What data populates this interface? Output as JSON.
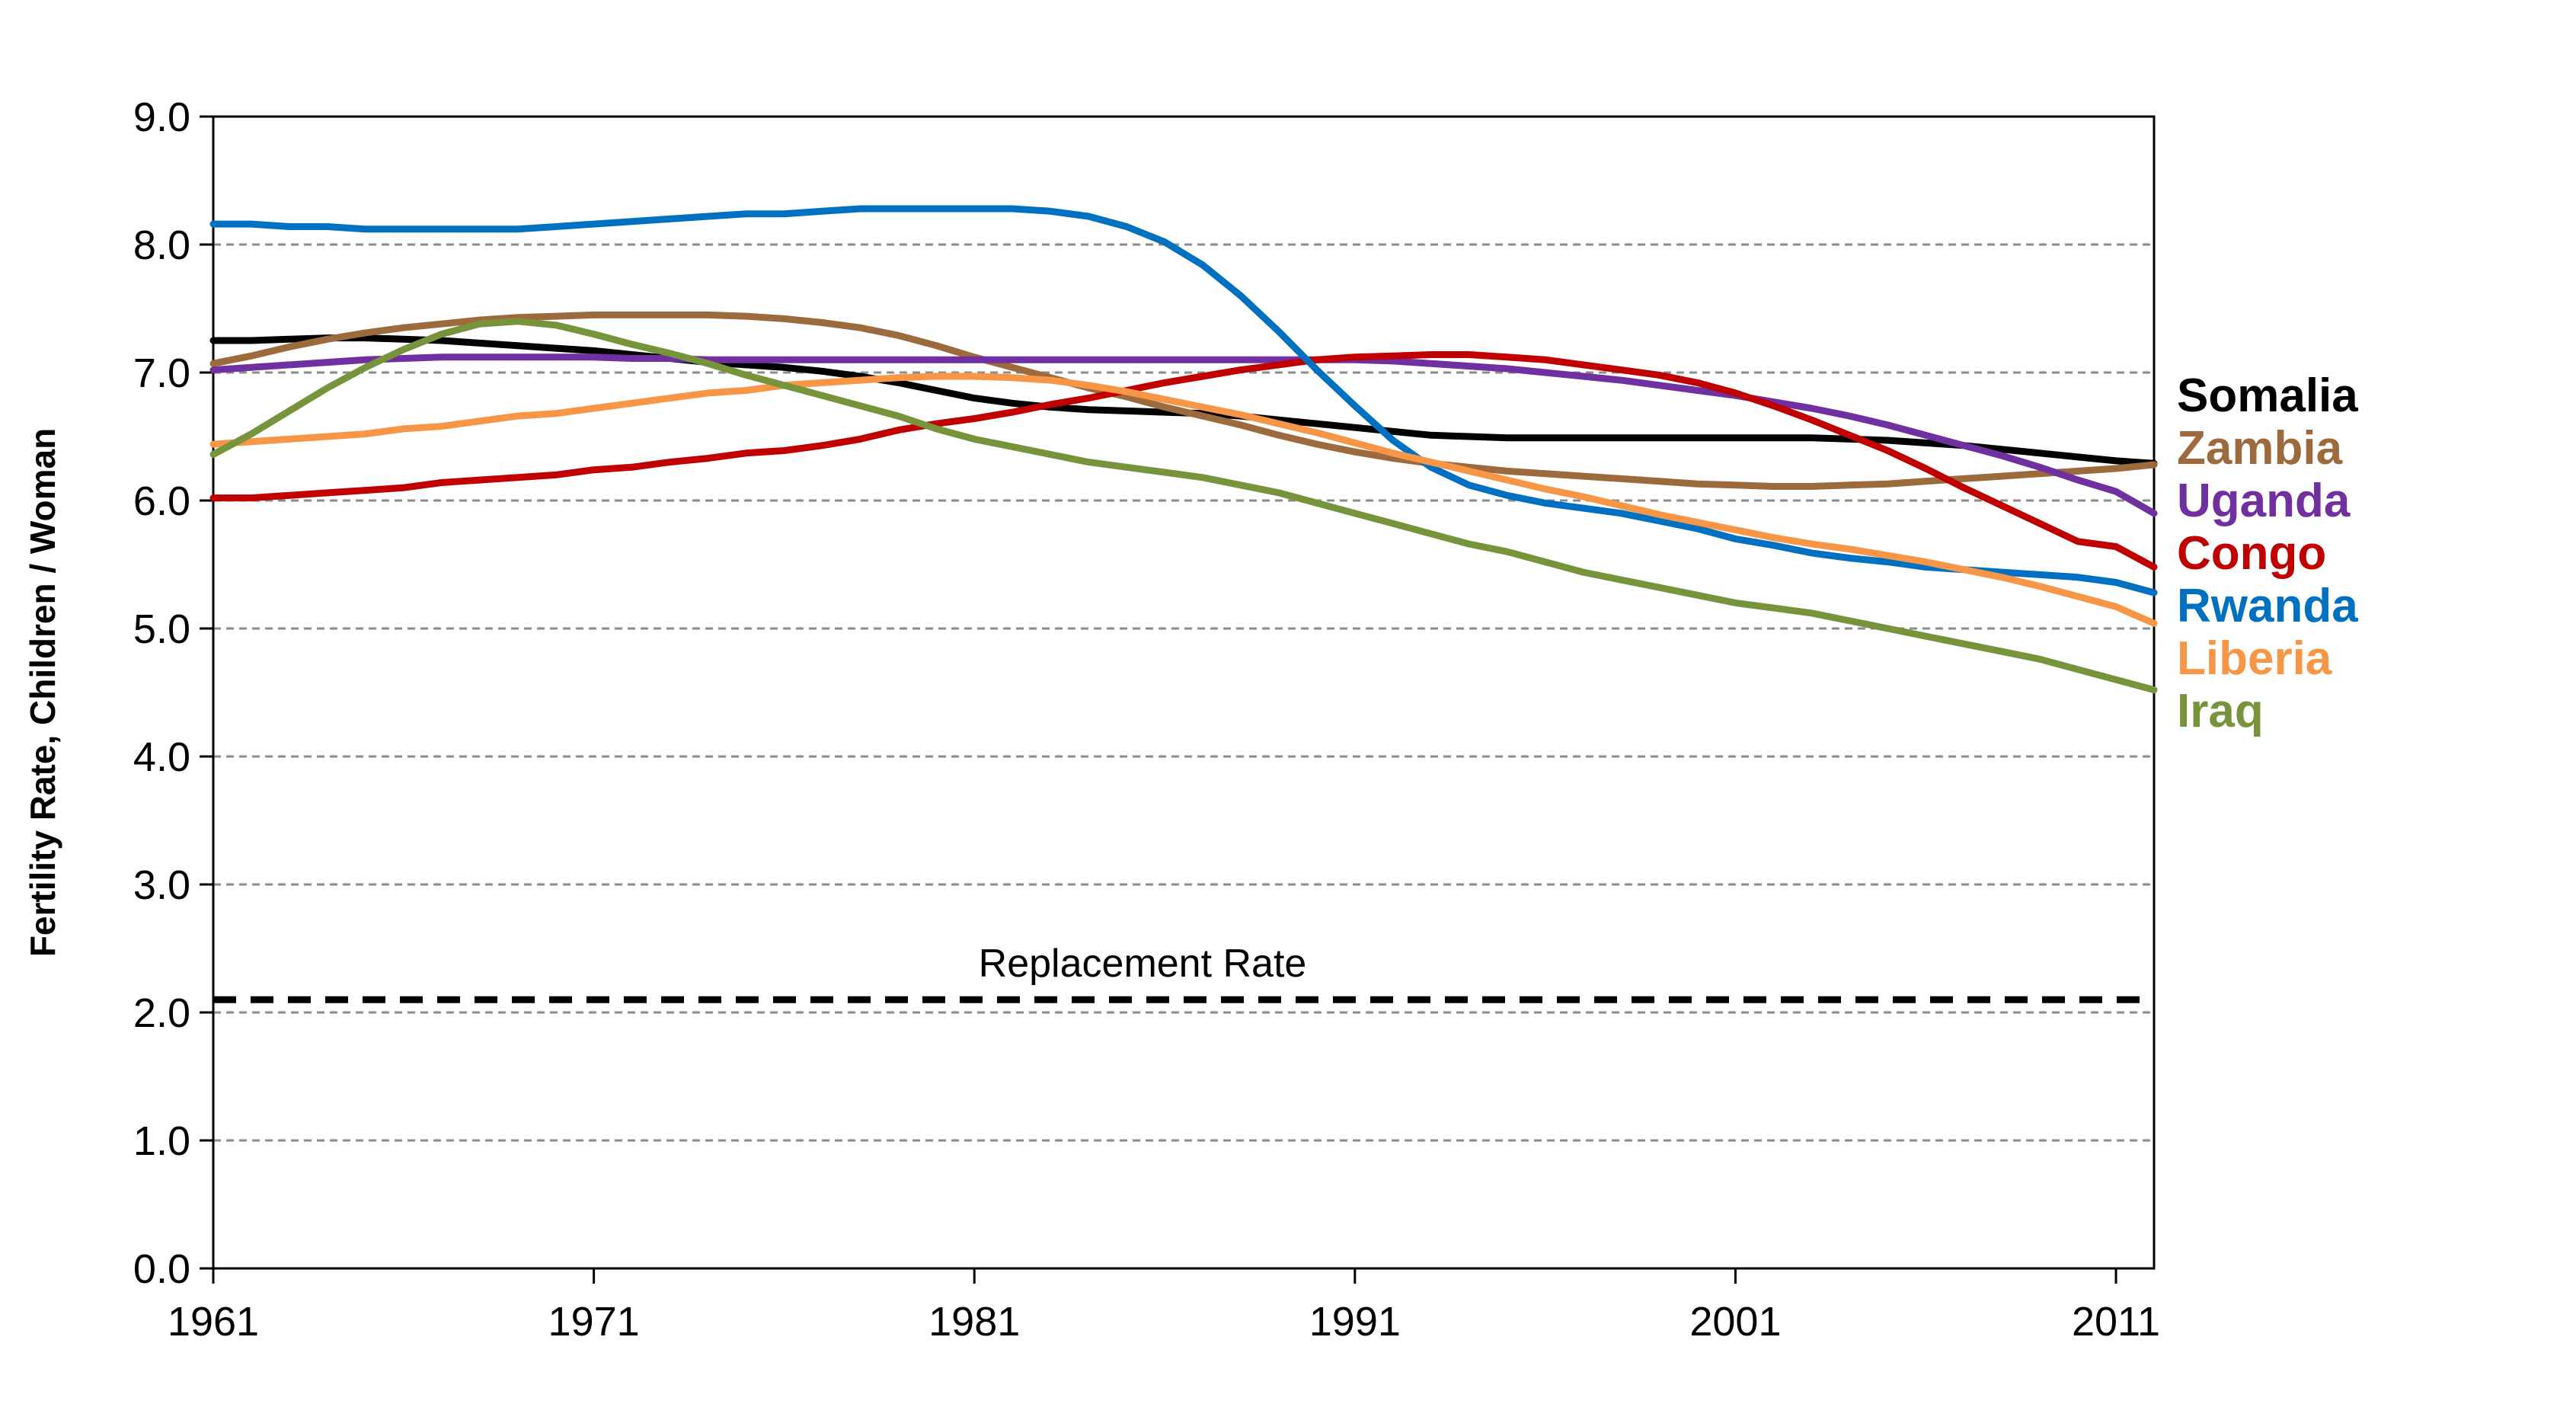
{
  "chart_data": {
    "type": "line",
    "title": "",
    "xlabel": "",
    "ylabel": "Fertility Rate, Children / Woman",
    "xlim": [
      1961,
      2012
    ],
    "ylim": [
      0,
      9
    ],
    "x_ticks": [
      "1961",
      "1971",
      "1981",
      "1991",
      "2001",
      "2011"
    ],
    "y_ticks": [
      "0.0",
      "1.0",
      "2.0",
      "3.0",
      "4.0",
      "5.0",
      "6.0",
      "7.0",
      "8.0",
      "9.0"
    ],
    "grid": "horizontal dashed",
    "legend_placement": "right (labels stacked beside line ends)",
    "replacement": {
      "label": "Replacement Rate",
      "value": 2.1
    },
    "series": [
      {
        "name": "Somalia",
        "color": "#000000",
        "x": [
          1961,
          1962,
          1963,
          1964,
          1965,
          1966,
          1967,
          1968,
          1969,
          1970,
          1971,
          1972,
          1973,
          1974,
          1975,
          1976,
          1977,
          1978,
          1979,
          1980,
          1981,
          1982,
          1983,
          1984,
          1985,
          1986,
          1987,
          1988,
          1989,
          1990,
          1991,
          1992,
          1993,
          1994,
          1995,
          1996,
          1997,
          1998,
          1999,
          2000,
          2001,
          2002,
          2003,
          2004,
          2005,
          2006,
          2007,
          2008,
          2009,
          2010,
          2011,
          2012
        ],
        "values": [
          7.25,
          7.25,
          7.26,
          7.27,
          7.27,
          7.26,
          7.25,
          7.23,
          7.21,
          7.19,
          7.17,
          7.14,
          7.11,
          7.08,
          7.06,
          7.04,
          7.01,
          6.97,
          6.92,
          6.86,
          6.8,
          6.76,
          6.73,
          6.71,
          6.7,
          6.69,
          6.68,
          6.66,
          6.63,
          6.6,
          6.57,
          6.54,
          6.51,
          6.5,
          6.49,
          6.49,
          6.49,
          6.49,
          6.49,
          6.49,
          6.49,
          6.49,
          6.49,
          6.48,
          6.47,
          6.45,
          6.43,
          6.4,
          6.37,
          6.34,
          6.31,
          6.29
        ]
      },
      {
        "name": "Zambia",
        "color": "#9c6a3c",
        "x": [
          1961,
          1962,
          1963,
          1964,
          1965,
          1966,
          1967,
          1968,
          1969,
          1970,
          1971,
          1972,
          1973,
          1974,
          1975,
          1976,
          1977,
          1978,
          1979,
          1980,
          1981,
          1982,
          1983,
          1984,
          1985,
          1986,
          1987,
          1988,
          1989,
          1990,
          1991,
          1992,
          1993,
          1994,
          1995,
          1996,
          1997,
          1998,
          1999,
          2000,
          2001,
          2002,
          2003,
          2004,
          2005,
          2006,
          2007,
          2008,
          2009,
          2010,
          2011,
          2012
        ],
        "values": [
          7.07,
          7.13,
          7.2,
          7.26,
          7.31,
          7.35,
          7.38,
          7.41,
          7.43,
          7.44,
          7.45,
          7.45,
          7.45,
          7.45,
          7.44,
          7.42,
          7.39,
          7.35,
          7.29,
          7.21,
          7.12,
          7.04,
          6.96,
          6.88,
          6.81,
          6.73,
          6.66,
          6.59,
          6.51,
          6.44,
          6.38,
          6.33,
          6.29,
          6.26,
          6.23,
          6.21,
          6.19,
          6.17,
          6.15,
          6.13,
          6.12,
          6.11,
          6.11,
          6.12,
          6.13,
          6.15,
          6.17,
          6.19,
          6.21,
          6.23,
          6.25,
          6.28
        ]
      },
      {
        "name": "Uganda",
        "color": "#7030a0",
        "x": [
          1961,
          1962,
          1963,
          1964,
          1965,
          1966,
          1967,
          1968,
          1969,
          1970,
          1971,
          1972,
          1973,
          1974,
          1975,
          1976,
          1977,
          1978,
          1979,
          1980,
          1981,
          1982,
          1983,
          1984,
          1985,
          1986,
          1987,
          1988,
          1989,
          1990,
          1991,
          1992,
          1993,
          1994,
          1995,
          1996,
          1997,
          1998,
          1999,
          2000,
          2001,
          2002,
          2003,
          2004,
          2005,
          2006,
          2007,
          2008,
          2009,
          2010,
          2011,
          2012
        ],
        "values": [
          7.02,
          7.04,
          7.06,
          7.08,
          7.1,
          7.11,
          7.12,
          7.12,
          7.12,
          7.12,
          7.12,
          7.11,
          7.11,
          7.1,
          7.1,
          7.1,
          7.1,
          7.1,
          7.1,
          7.1,
          7.1,
          7.1,
          7.1,
          7.1,
          7.1,
          7.1,
          7.1,
          7.1,
          7.1,
          7.1,
          7.1,
          7.09,
          7.07,
          7.05,
          7.03,
          7.0,
          6.97,
          6.94,
          6.9,
          6.86,
          6.82,
          6.77,
          6.72,
          6.66,
          6.59,
          6.51,
          6.43,
          6.35,
          6.26,
          6.16,
          6.07,
          5.9
        ]
      },
      {
        "name": "Congo",
        "color": "#c00000",
        "x": [
          1961,
          1962,
          1963,
          1964,
          1965,
          1966,
          1967,
          1968,
          1969,
          1970,
          1971,
          1972,
          1973,
          1974,
          1975,
          1976,
          1977,
          1978,
          1979,
          1980,
          1981,
          1982,
          1983,
          1984,
          1985,
          1986,
          1987,
          1988,
          1989,
          1990,
          1991,
          1992,
          1993,
          1994,
          1995,
          1996,
          1997,
          1998,
          1999,
          2000,
          2001,
          2002,
          2003,
          2004,
          2005,
          2006,
          2007,
          2008,
          2009,
          2010,
          2011,
          2012
        ],
        "values": [
          6.02,
          6.02,
          6.04,
          6.06,
          6.08,
          6.1,
          6.14,
          6.16,
          6.18,
          6.2,
          6.24,
          6.26,
          6.3,
          6.33,
          6.37,
          6.39,
          6.43,
          6.48,
          6.55,
          6.6,
          6.64,
          6.69,
          6.75,
          6.8,
          6.86,
          6.92,
          6.97,
          7.02,
          7.06,
          7.1,
          7.12,
          7.13,
          7.14,
          7.14,
          7.12,
          7.1,
          7.06,
          7.02,
          6.98,
          6.92,
          6.84,
          6.74,
          6.63,
          6.51,
          6.39,
          6.25,
          6.1,
          5.96,
          5.82,
          5.68,
          5.64,
          5.48
        ]
      },
      {
        "name": "Rwanda",
        "color": "#0070c0",
        "x": [
          1961,
          1962,
          1963,
          1964,
          1965,
          1966,
          1967,
          1968,
          1969,
          1970,
          1971,
          1972,
          1973,
          1974,
          1975,
          1976,
          1977,
          1978,
          1979,
          1980,
          1981,
          1982,
          1983,
          1984,
          1985,
          1986,
          1987,
          1988,
          1989,
          1990,
          1991,
          1992,
          1993,
          1994,
          1995,
          1996,
          1997,
          1998,
          1999,
          2000,
          2001,
          2002,
          2003,
          2004,
          2005,
          2006,
          2007,
          2008,
          2009,
          2010,
          2011,
          2012
        ],
        "values": [
          8.16,
          8.16,
          8.14,
          8.14,
          8.12,
          8.12,
          8.12,
          8.12,
          8.12,
          8.14,
          8.16,
          8.18,
          8.2,
          8.22,
          8.24,
          8.24,
          8.26,
          8.28,
          8.28,
          8.28,
          8.28,
          8.28,
          8.26,
          8.22,
          8.14,
          8.02,
          7.84,
          7.6,
          7.32,
          7.02,
          6.74,
          6.47,
          6.26,
          6.12,
          6.04,
          5.98,
          5.94,
          5.9,
          5.84,
          5.78,
          5.7,
          5.65,
          5.59,
          5.55,
          5.52,
          5.48,
          5.46,
          5.44,
          5.42,
          5.4,
          5.36,
          5.28
        ]
      },
      {
        "name": "Liberia",
        "color": "#f79646",
        "x": [
          1961,
          1962,
          1963,
          1964,
          1965,
          1966,
          1967,
          1968,
          1969,
          1970,
          1971,
          1972,
          1973,
          1974,
          1975,
          1976,
          1977,
          1978,
          1979,
          1980,
          1981,
          1982,
          1983,
          1984,
          1985,
          1986,
          1987,
          1988,
          1989,
          1990,
          1991,
          1992,
          1993,
          1994,
          1995,
          1996,
          1997,
          1998,
          1999,
          2000,
          2001,
          2002,
          2003,
          2004,
          2005,
          2006,
          2007,
          2008,
          2009,
          2010,
          2011,
          2012
        ],
        "values": [
          6.44,
          6.46,
          6.48,
          6.5,
          6.52,
          6.56,
          6.58,
          6.62,
          6.66,
          6.68,
          6.72,
          6.76,
          6.8,
          6.84,
          6.86,
          6.9,
          6.92,
          6.94,
          6.96,
          6.97,
          6.97,
          6.96,
          6.94,
          6.9,
          6.85,
          6.79,
          6.73,
          6.67,
          6.6,
          6.53,
          6.45,
          6.37,
          6.3,
          6.23,
          6.16,
          6.09,
          6.03,
          5.96,
          5.89,
          5.83,
          5.77,
          5.71,
          5.66,
          5.62,
          5.57,
          5.52,
          5.46,
          5.4,
          5.33,
          5.25,
          5.17,
          5.04
        ]
      },
      {
        "name": "Iraq",
        "color": "#77933c",
        "x": [
          1961,
          1962,
          1963,
          1964,
          1965,
          1966,
          1967,
          1968,
          1969,
          1970,
          1971,
          1972,
          1973,
          1974,
          1975,
          1976,
          1977,
          1978,
          1979,
          1980,
          1981,
          1982,
          1983,
          1984,
          1985,
          1986,
          1987,
          1988,
          1989,
          1990,
          1991,
          1992,
          1993,
          1994,
          1995,
          1996,
          1997,
          1998,
          1999,
          2000,
          2001,
          2002,
          2003,
          2004,
          2005,
          2006,
          2007,
          2008,
          2009,
          2010,
          2011,
          2012
        ],
        "values": [
          6.36,
          6.52,
          6.7,
          6.88,
          7.04,
          7.18,
          7.3,
          7.38,
          7.4,
          7.37,
          7.3,
          7.22,
          7.15,
          7.07,
          6.98,
          6.9,
          6.82,
          6.74,
          6.66,
          6.56,
          6.48,
          6.42,
          6.36,
          6.3,
          6.26,
          6.22,
          6.18,
          6.12,
          6.06,
          5.98,
          5.9,
          5.82,
          5.74,
          5.66,
          5.6,
          5.52,
          5.44,
          5.38,
          5.32,
          5.26,
          5.2,
          5.16,
          5.12,
          5.06,
          5.0,
          4.94,
          4.88,
          4.82,
          4.76,
          4.68,
          4.6,
          4.52
        ]
      }
    ]
  }
}
